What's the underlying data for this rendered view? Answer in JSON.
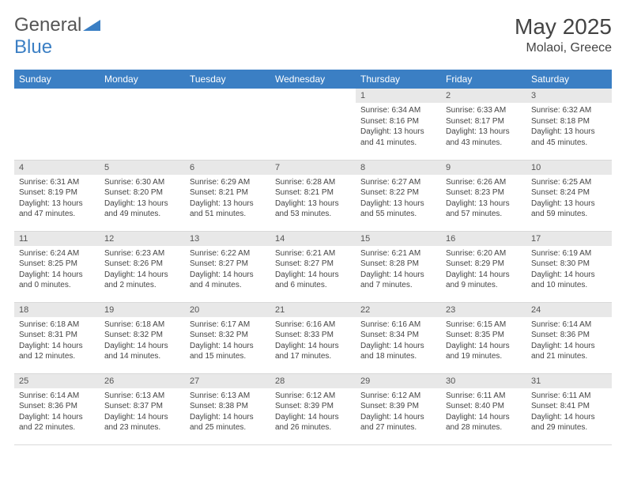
{
  "brand": {
    "part1": "General",
    "part2": "Blue"
  },
  "month_title": "May 2025",
  "location": "Molaoi, Greece",
  "colors": {
    "header_bg": "#3b7fc4",
    "header_text": "#ffffff",
    "daynum_bg": "#e8e8e8",
    "border": "#d9d9d9",
    "body_text": "#444444",
    "page_bg": "#ffffff"
  },
  "day_labels": [
    "Sunday",
    "Monday",
    "Tuesday",
    "Wednesday",
    "Thursday",
    "Friday",
    "Saturday"
  ],
  "weeks": [
    [
      {
        "n": "",
        "sr": "",
        "ss": "",
        "dl": ""
      },
      {
        "n": "",
        "sr": "",
        "ss": "",
        "dl": ""
      },
      {
        "n": "",
        "sr": "",
        "ss": "",
        "dl": ""
      },
      {
        "n": "",
        "sr": "",
        "ss": "",
        "dl": ""
      },
      {
        "n": "1",
        "sr": "Sunrise: 6:34 AM",
        "ss": "Sunset: 8:16 PM",
        "dl": "Daylight: 13 hours and 41 minutes."
      },
      {
        "n": "2",
        "sr": "Sunrise: 6:33 AM",
        "ss": "Sunset: 8:17 PM",
        "dl": "Daylight: 13 hours and 43 minutes."
      },
      {
        "n": "3",
        "sr": "Sunrise: 6:32 AM",
        "ss": "Sunset: 8:18 PM",
        "dl": "Daylight: 13 hours and 45 minutes."
      }
    ],
    [
      {
        "n": "4",
        "sr": "Sunrise: 6:31 AM",
        "ss": "Sunset: 8:19 PM",
        "dl": "Daylight: 13 hours and 47 minutes."
      },
      {
        "n": "5",
        "sr": "Sunrise: 6:30 AM",
        "ss": "Sunset: 8:20 PM",
        "dl": "Daylight: 13 hours and 49 minutes."
      },
      {
        "n": "6",
        "sr": "Sunrise: 6:29 AM",
        "ss": "Sunset: 8:21 PM",
        "dl": "Daylight: 13 hours and 51 minutes."
      },
      {
        "n": "7",
        "sr": "Sunrise: 6:28 AM",
        "ss": "Sunset: 8:21 PM",
        "dl": "Daylight: 13 hours and 53 minutes."
      },
      {
        "n": "8",
        "sr": "Sunrise: 6:27 AM",
        "ss": "Sunset: 8:22 PM",
        "dl": "Daylight: 13 hours and 55 minutes."
      },
      {
        "n": "9",
        "sr": "Sunrise: 6:26 AM",
        "ss": "Sunset: 8:23 PM",
        "dl": "Daylight: 13 hours and 57 minutes."
      },
      {
        "n": "10",
        "sr": "Sunrise: 6:25 AM",
        "ss": "Sunset: 8:24 PM",
        "dl": "Daylight: 13 hours and 59 minutes."
      }
    ],
    [
      {
        "n": "11",
        "sr": "Sunrise: 6:24 AM",
        "ss": "Sunset: 8:25 PM",
        "dl": "Daylight: 14 hours and 0 minutes."
      },
      {
        "n": "12",
        "sr": "Sunrise: 6:23 AM",
        "ss": "Sunset: 8:26 PM",
        "dl": "Daylight: 14 hours and 2 minutes."
      },
      {
        "n": "13",
        "sr": "Sunrise: 6:22 AM",
        "ss": "Sunset: 8:27 PM",
        "dl": "Daylight: 14 hours and 4 minutes."
      },
      {
        "n": "14",
        "sr": "Sunrise: 6:21 AM",
        "ss": "Sunset: 8:27 PM",
        "dl": "Daylight: 14 hours and 6 minutes."
      },
      {
        "n": "15",
        "sr": "Sunrise: 6:21 AM",
        "ss": "Sunset: 8:28 PM",
        "dl": "Daylight: 14 hours and 7 minutes."
      },
      {
        "n": "16",
        "sr": "Sunrise: 6:20 AM",
        "ss": "Sunset: 8:29 PM",
        "dl": "Daylight: 14 hours and 9 minutes."
      },
      {
        "n": "17",
        "sr": "Sunrise: 6:19 AM",
        "ss": "Sunset: 8:30 PM",
        "dl": "Daylight: 14 hours and 10 minutes."
      }
    ],
    [
      {
        "n": "18",
        "sr": "Sunrise: 6:18 AM",
        "ss": "Sunset: 8:31 PM",
        "dl": "Daylight: 14 hours and 12 minutes."
      },
      {
        "n": "19",
        "sr": "Sunrise: 6:18 AM",
        "ss": "Sunset: 8:32 PM",
        "dl": "Daylight: 14 hours and 14 minutes."
      },
      {
        "n": "20",
        "sr": "Sunrise: 6:17 AM",
        "ss": "Sunset: 8:32 PM",
        "dl": "Daylight: 14 hours and 15 minutes."
      },
      {
        "n": "21",
        "sr": "Sunrise: 6:16 AM",
        "ss": "Sunset: 8:33 PM",
        "dl": "Daylight: 14 hours and 17 minutes."
      },
      {
        "n": "22",
        "sr": "Sunrise: 6:16 AM",
        "ss": "Sunset: 8:34 PM",
        "dl": "Daylight: 14 hours and 18 minutes."
      },
      {
        "n": "23",
        "sr": "Sunrise: 6:15 AM",
        "ss": "Sunset: 8:35 PM",
        "dl": "Daylight: 14 hours and 19 minutes."
      },
      {
        "n": "24",
        "sr": "Sunrise: 6:14 AM",
        "ss": "Sunset: 8:36 PM",
        "dl": "Daylight: 14 hours and 21 minutes."
      }
    ],
    [
      {
        "n": "25",
        "sr": "Sunrise: 6:14 AM",
        "ss": "Sunset: 8:36 PM",
        "dl": "Daylight: 14 hours and 22 minutes."
      },
      {
        "n": "26",
        "sr": "Sunrise: 6:13 AM",
        "ss": "Sunset: 8:37 PM",
        "dl": "Daylight: 14 hours and 23 minutes."
      },
      {
        "n": "27",
        "sr": "Sunrise: 6:13 AM",
        "ss": "Sunset: 8:38 PM",
        "dl": "Daylight: 14 hours and 25 minutes."
      },
      {
        "n": "28",
        "sr": "Sunrise: 6:12 AM",
        "ss": "Sunset: 8:39 PM",
        "dl": "Daylight: 14 hours and 26 minutes."
      },
      {
        "n": "29",
        "sr": "Sunrise: 6:12 AM",
        "ss": "Sunset: 8:39 PM",
        "dl": "Daylight: 14 hours and 27 minutes."
      },
      {
        "n": "30",
        "sr": "Sunrise: 6:11 AM",
        "ss": "Sunset: 8:40 PM",
        "dl": "Daylight: 14 hours and 28 minutes."
      },
      {
        "n": "31",
        "sr": "Sunrise: 6:11 AM",
        "ss": "Sunset: 8:41 PM",
        "dl": "Daylight: 14 hours and 29 minutes."
      }
    ]
  ]
}
